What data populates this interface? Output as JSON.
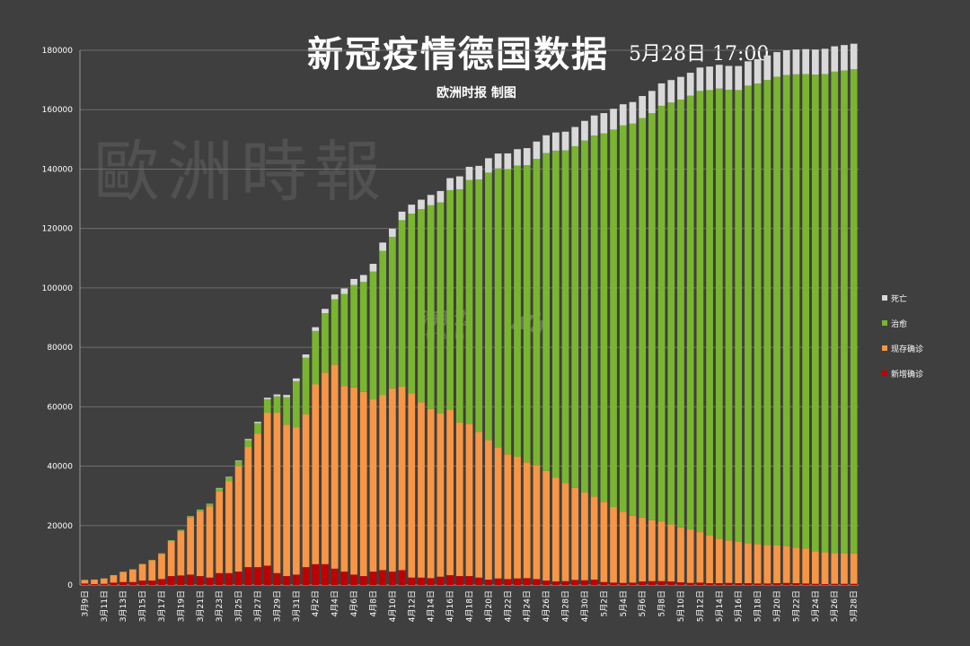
{
  "title": "新冠疫情德国数据",
  "subtitle": "5月28日 17:00",
  "publisher": "欧洲时报 制图",
  "watermark": "歐洲時報",
  "watermark2": {
    "cn": "海那边",
    "en": "Hinabian"
  },
  "colors": {
    "background": "#3f3f3f",
    "grid": "#6e6e6e",
    "death": "#d9d9d9",
    "recovered": "#7ab530",
    "active": "#f79646",
    "new": "#c00000"
  },
  "chart_data": {
    "type": "bar",
    "stacked": true,
    "title": "新冠疫情德国数据",
    "ylim": [
      0,
      180000
    ],
    "yticks": [
      0,
      20000,
      40000,
      60000,
      80000,
      100000,
      120000,
      140000,
      160000,
      180000
    ],
    "categories": [
      "3月9日",
      "3月10日",
      "3月11日",
      "3月12日",
      "3月13日",
      "3月14日",
      "3月15日",
      "3月16日",
      "3月17日",
      "3月18日",
      "3月19日",
      "3月20日",
      "3月21日",
      "3月22日",
      "3月23日",
      "3月24日",
      "3月25日",
      "3月26日",
      "3月27日",
      "3月28日",
      "3月29日",
      "3月30日",
      "3月31日",
      "4月1日",
      "4月2日",
      "4月3日",
      "4月4日",
      "4月5日",
      "4月6日",
      "4月7日",
      "4月8日",
      "4月9日",
      "4月10日",
      "4月11日",
      "4月12日",
      "4月13日",
      "4月14日",
      "4月15日",
      "4月16日",
      "4月17日",
      "4月18日",
      "4月19日",
      "4月20日",
      "4月21日",
      "4月22日",
      "4月23日",
      "4月24日",
      "4月25日",
      "4月26日",
      "4月27日",
      "4月28日",
      "4月29日",
      "4月30日",
      "5月1日",
      "5月2日",
      "5月3日",
      "5月4日",
      "5月5日",
      "5月6日",
      "5月7日",
      "5月8日",
      "5月9日",
      "5月10日",
      "5月11日",
      "5月12日",
      "5月13日",
      "5月14日",
      "5月15日",
      "5月16日",
      "5月17日",
      "5月18日",
      "5月19日",
      "5月20日",
      "5月21日",
      "5月22日",
      "5月23日",
      "5月24日",
      "5月25日",
      "5月26日",
      "5月27日",
      "5月28日"
    ],
    "tick_labels": [
      "3月9日",
      "3月11日",
      "3月13日",
      "3月15日",
      "3月17日",
      "3月19日",
      "3月21日",
      "3月23日",
      "3月25日",
      "3月27日",
      "3月29日",
      "3月31日",
      "4月2日",
      "4月4日",
      "4月6日",
      "4月8日",
      "4月10日",
      "4月12日",
      "4月14日",
      "4月16日",
      "4月18日",
      "4月20日",
      "4月22日",
      "4月24日",
      "4月26日",
      "4月28日",
      "4月30日",
      "5月2日",
      "5月4日",
      "5月6日",
      "5月8日",
      "5月10日",
      "5月12日",
      "5月14日",
      "5月16日",
      "5月18日",
      "5月20日",
      "5月22日",
      "5月24日",
      "5月26日",
      "5月28日"
    ],
    "legend": [
      "死亡",
      "治愈",
      "现存确诊",
      "新增确诊"
    ],
    "legend_position": "right",
    "series": [
      {
        "name": "新增确诊",
        "values": [
          500,
          300,
          400,
          800,
          1000,
          1000,
          1500,
          1500,
          2000,
          3000,
          3200,
          3500,
          3000,
          2500,
          4000,
          4000,
          4500,
          6000,
          6000,
          6500,
          4000,
          3000,
          3500,
          6000,
          7000,
          7000,
          5500,
          4500,
          3500,
          3000,
          4500,
          5000,
          4500,
          5000,
          2500,
          2500,
          2300,
          2800,
          3300,
          3000,
          3000,
          2500,
          1800,
          2200,
          2000,
          2200,
          2300,
          2000,
          1500,
          1200,
          1300,
          1700,
          1600,
          1800,
          1000,
          800,
          700,
          800,
          1200,
          1300,
          1300,
          1200,
          900,
          700,
          800,
          600,
          600,
          700,
          600,
          600,
          500,
          500,
          600,
          700,
          600,
          500,
          400,
          300,
          400,
          400,
          400
        ]
      },
      {
        "name": "现存确诊",
        "values": [
          1200,
          1500,
          1800,
          2500,
          3400,
          4200,
          5500,
          6800,
          8500,
          11800,
          15000,
          19200,
          21800,
          24000,
          27500,
          31000,
          35500,
          40500,
          45000,
          51500,
          54000,
          51000,
          49500,
          51500,
          60500,
          64500,
          68700,
          62500,
          63000,
          62000,
          58000,
          59000,
          61700,
          61800,
          62000,
          59000,
          57000,
          55000,
          55600,
          51700,
          51300,
          49000,
          47000,
          44000,
          42000,
          41000,
          39000,
          38400,
          36900,
          35000,
          33000,
          31000,
          29500,
          28000,
          27000,
          25500,
          24000,
          22500,
          21500,
          20500,
          20000,
          19200,
          18500,
          18000,
          17000,
          16000,
          15000,
          14300,
          14000,
          13500,
          13300,
          13000,
          12700,
          12400,
          12000,
          11800,
          11000,
          10700,
          10400,
          10300,
          10200
        ]
      },
      {
        "name": "治愈",
        "values": [
          25,
          25,
          25,
          25,
          50,
          100,
          100,
          100,
          150,
          200,
          300,
          400,
          500,
          700,
          1000,
          1200,
          1600,
          2300,
          3500,
          4500,
          5500,
          9200,
          15600,
          19000,
          18000,
          20000,
          22000,
          31000,
          34500,
          37000,
          43000,
          48500,
          51000,
          56000,
          60500,
          65000,
          68500,
          71000,
          74000,
          78500,
          82000,
          85000,
          90000,
          94000,
          96000,
          98000,
          100000,
          103000,
          107000,
          110000,
          112000,
          115000,
          118500,
          121500,
          124000,
          127000,
          130000,
          132000,
          134500,
          137000,
          140000,
          142000,
          144000,
          146000,
          148500,
          150000,
          151500,
          151700,
          152000,
          154000,
          155000,
          156500,
          157800,
          158600,
          159300,
          159700,
          160400,
          161000,
          162000,
          162500,
          163000
        ]
      },
      {
        "name": "死亡",
        "values": [
          2,
          2,
          3,
          6,
          8,
          13,
          13,
          17,
          27,
          44,
          67,
          84,
          94,
          123,
          157,
          206,
          267,
          342,
          433,
          533,
          645,
          775,
          931,
          1107,
          1275,
          1444,
          1584,
          1810,
          2016,
          2349,
          2607,
          2767,
          2736,
          2871,
          3022,
          3194,
          3495,
          3804,
          4052,
          4352,
          4459,
          4586,
          4862,
          5033,
          5279,
          5500,
          5760,
          5865,
          5976,
          6115,
          6288,
          6467,
          6623,
          6736,
          6831,
          6993,
          7119,
          7266,
          7392,
          7510,
          7549,
          7569,
          7634,
          7723,
          7881,
          7914,
          7997,
          8027,
          8090,
          8174,
          8203,
          8247,
          8283,
          8302,
          8349,
          8366,
          8450,
          8497,
          8527,
          8555,
          8600
        ]
      }
    ]
  }
}
